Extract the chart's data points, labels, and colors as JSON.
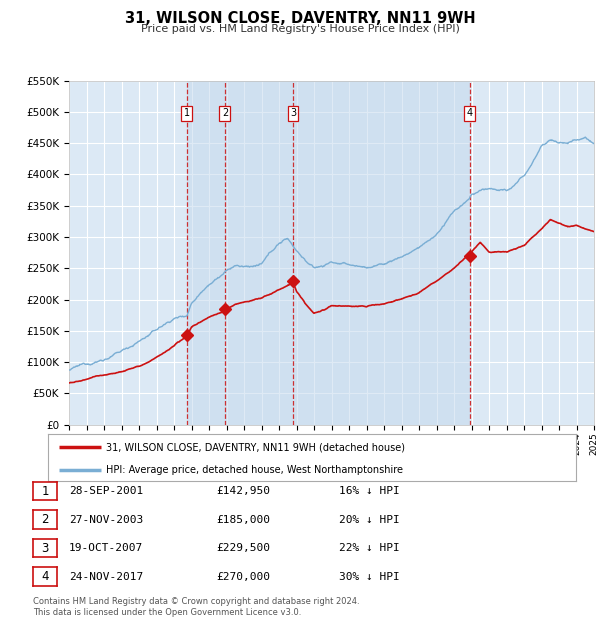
{
  "title": "31, WILSON CLOSE, DAVENTRY, NN11 9WH",
  "subtitle": "Price paid vs. HM Land Registry's House Price Index (HPI)",
  "ylim": [
    0,
    550000
  ],
  "yticks": [
    0,
    50000,
    100000,
    150000,
    200000,
    250000,
    300000,
    350000,
    400000,
    450000,
    500000,
    550000
  ],
  "ytick_labels": [
    "£0",
    "£50K",
    "£100K",
    "£150K",
    "£200K",
    "£250K",
    "£300K",
    "£350K",
    "£400K",
    "£450K",
    "£500K",
    "£550K"
  ],
  "hpi_color": "#7aaed4",
  "price_color": "#cc1111",
  "background_color": "#ffffff",
  "plot_bg_color": "#dce9f5",
  "shade_color": "#c8dcef",
  "grid_color": "#ffffff",
  "transactions": [
    {
      "num": 1,
      "price": 142950,
      "x": 2001.74
    },
    {
      "num": 2,
      "price": 185000,
      "x": 2003.91
    },
    {
      "num": 3,
      "price": 229500,
      "x": 2007.8
    },
    {
      "num": 4,
      "price": 270000,
      "x": 2017.9
    }
  ],
  "legend_property_label": "31, WILSON CLOSE, DAVENTRY, NN11 9WH (detached house)",
  "legend_hpi_label": "HPI: Average price, detached house, West Northamptonshire",
  "footnote": "Contains HM Land Registry data © Crown copyright and database right 2024.\nThis data is licensed under the Open Government Licence v3.0.",
  "table_rows": [
    {
      "num": 1,
      "date": "28-SEP-2001",
      "price": "£142,950",
      "pct": "16% ↓ HPI"
    },
    {
      "num": 2,
      "date": "27-NOV-2003",
      "price": "£185,000",
      "pct": "20% ↓ HPI"
    },
    {
      "num": 3,
      "date": "19-OCT-2007",
      "price": "£229,500",
      "pct": "22% ↓ HPI"
    },
    {
      "num": 4,
      "date": "24-NOV-2017",
      "price": "£270,000",
      "pct": "30% ↓ HPI"
    }
  ]
}
